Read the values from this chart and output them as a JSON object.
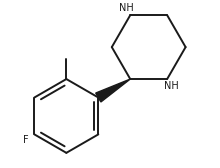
{
  "bg_color": "#ffffff",
  "line_color": "#1a1a1a",
  "bond_width": 1.4,
  "label_F": "F",
  "label_NH_top": "NH",
  "label_NH_bottom": "NH",
  "font_size_labels": 7.0,
  "figsize": [
    2.2,
    1.68
  ],
  "dpi": 100
}
